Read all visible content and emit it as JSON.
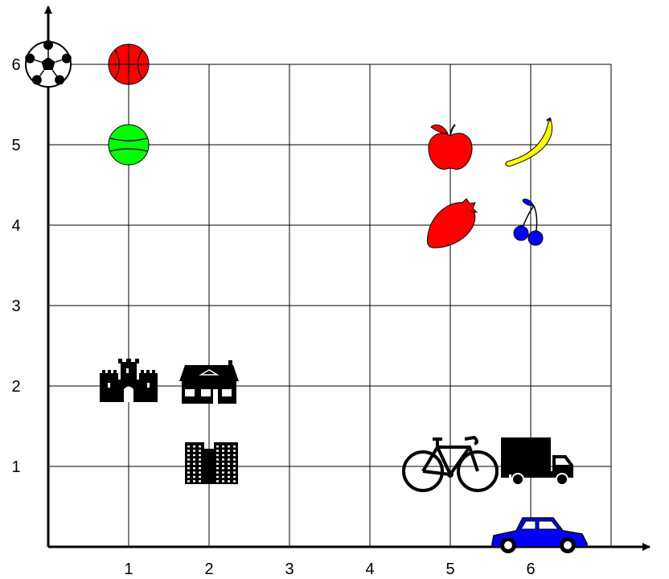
{
  "diagram": {
    "x_ticks": [
      "1",
      "2",
      "3",
      "4",
      "5",
      "6"
    ],
    "y_ticks": [
      "1",
      "2",
      "3",
      "4",
      "5",
      "6"
    ],
    "grid": true,
    "x_range": [
      0,
      7
    ],
    "y_range": [
      0,
      6
    ],
    "items": [
      {
        "id": "soccer-ball",
        "icon": "soccer-ball-icon",
        "x": 0,
        "y": 6,
        "color": "#000000"
      },
      {
        "id": "basketball",
        "icon": "basketball-icon",
        "x": 1,
        "y": 6,
        "color": "#ff0000"
      },
      {
        "id": "tennis-ball",
        "icon": "tennis-ball-icon",
        "x": 1,
        "y": 5,
        "color": "#00ff00"
      },
      {
        "id": "apple",
        "icon": "apple-icon",
        "x": 5,
        "y": 5,
        "color": "#ff0000"
      },
      {
        "id": "banana",
        "icon": "banana-icon",
        "x": 6,
        "y": 5,
        "color": "#ffff00"
      },
      {
        "id": "strawberry",
        "icon": "strawberry-icon",
        "x": 5,
        "y": 4,
        "color": "#ff0000"
      },
      {
        "id": "cherries",
        "icon": "cherries-icon",
        "x": 6,
        "y": 4,
        "color": "#0000ff"
      },
      {
        "id": "castle",
        "icon": "castle-icon",
        "x": 1,
        "y": 2,
        "color": "#000000"
      },
      {
        "id": "house",
        "icon": "house-icon",
        "x": 2,
        "y": 2,
        "color": "#000000"
      },
      {
        "id": "apartment-building",
        "icon": "apartment-building-icon",
        "x": 2,
        "y": 1,
        "color": "#000000"
      },
      {
        "id": "bicycle",
        "icon": "bicycle-icon",
        "x": 5,
        "y": 1,
        "color": "#000000"
      },
      {
        "id": "truck",
        "icon": "truck-icon",
        "x": 6,
        "y": 1,
        "color": "#000000"
      },
      {
        "id": "car",
        "icon": "car-icon",
        "x": 6,
        "y": 0,
        "color": "#0000ff"
      }
    ]
  }
}
